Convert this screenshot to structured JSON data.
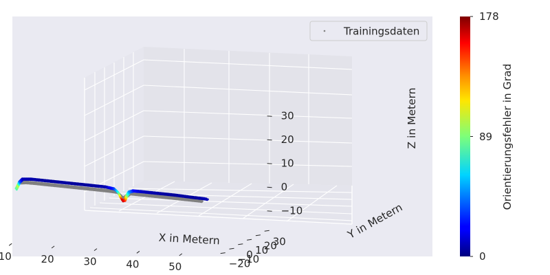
{
  "chart_data": {
    "type": "scatter",
    "projection": "3d",
    "xlabel": "X in Metern",
    "ylabel": "Y in Metern",
    "zlabel": "Z in Metern",
    "xticks": [
      10,
      20,
      30,
      40,
      50
    ],
    "yticks": [
      -20,
      -10,
      0,
      10,
      20,
      30
    ],
    "zticks": [
      -10,
      0,
      10,
      20,
      30
    ],
    "xlim": [
      3,
      58
    ],
    "ylim": [
      -25,
      33
    ],
    "zlim": [
      -18,
      37
    ],
    "grid": true,
    "legend": {
      "position": "top-right",
      "entries": [
        "Trainingsdaten"
      ]
    },
    "colorbar": {
      "label": "Orientierungsfehler in Grad",
      "colormap": "jet",
      "min": 0,
      "max": 178,
      "ticks": [
        0,
        89,
        178
      ]
    },
    "series": [
      {
        "name": "Trainingsdaten",
        "color": "#808080",
        "points": [
          [
            7.0,
            -2.0,
            3.0
          ],
          [
            8.5,
            -2.0,
            3.3
          ],
          [
            10.5,
            -2.0,
            3.2
          ],
          [
            13.0,
            -2.0,
            3.0
          ],
          [
            15.5,
            -2.0,
            2.8
          ],
          [
            18.0,
            -2.0,
            2.6
          ],
          [
            20.5,
            -2.0,
            2.4
          ],
          [
            23.0,
            -2.0,
            2.2
          ],
          [
            25.5,
            -2.0,
            2.0
          ],
          [
            28.0,
            -2.0,
            1.8
          ],
          [
            30.0,
            -2.0,
            1.5
          ],
          [
            31.5,
            -2.0,
            -1.0
          ],
          [
            33.0,
            -2.0,
            1.2
          ],
          [
            35.5,
            -2.0,
            1.0
          ],
          [
            38.0,
            -2.0,
            0.8
          ],
          [
            40.5,
            -2.0,
            0.6
          ],
          [
            43.0,
            -2.0,
            0.4
          ],
          [
            45.5,
            -2.0,
            0.2
          ],
          [
            48.0,
            -2.0,
            0.0
          ],
          [
            50.0,
            -2.0,
            -0.2
          ]
        ]
      },
      {
        "name": "Orientierungsfehler",
        "colormap": "jet",
        "points": [
          [
            6.5,
            -3.0,
            0.5,
            80
          ],
          [
            6.9,
            -3.0,
            2.0,
            100
          ],
          [
            7.3,
            -3.0,
            3.5,
            40
          ],
          [
            8.0,
            -3.0,
            4.8,
            10
          ],
          [
            10.0,
            -3.0,
            5.0,
            8
          ],
          [
            12.5,
            -3.0,
            4.8,
            6
          ],
          [
            15.0,
            -3.0,
            4.6,
            5
          ],
          [
            17.5,
            -3.0,
            4.4,
            6
          ],
          [
            20.0,
            -3.0,
            4.2,
            5
          ],
          [
            22.5,
            -3.0,
            4.0,
            5
          ],
          [
            25.0,
            -3.0,
            3.8,
            6
          ],
          [
            27.5,
            -3.0,
            3.6,
            8
          ],
          [
            29.5,
            -3.0,
            3.0,
            30
          ],
          [
            30.5,
            -3.0,
            1.5,
            70
          ],
          [
            31.0,
            -3.0,
            -0.5,
            120
          ],
          [
            31.5,
            -3.0,
            -1.8,
            165
          ],
          [
            32.0,
            -3.0,
            -1.5,
            150
          ],
          [
            32.5,
            -3.0,
            0.5,
            90
          ],
          [
            33.0,
            -3.0,
            2.0,
            50
          ],
          [
            34.0,
            -3.0,
            2.6,
            25
          ],
          [
            36.0,
            -3.0,
            2.5,
            12
          ],
          [
            38.5,
            -3.0,
            2.3,
            8
          ],
          [
            41.0,
            -3.0,
            2.1,
            6
          ],
          [
            43.5,
            -3.0,
            1.9,
            5
          ],
          [
            46.0,
            -3.0,
            1.6,
            6
          ],
          [
            48.5,
            -3.0,
            1.3,
            5
          ],
          [
            50.5,
            -3.0,
            1.1,
            8
          ],
          [
            51.5,
            -3.0,
            0.9,
            10
          ]
        ]
      }
    ]
  }
}
